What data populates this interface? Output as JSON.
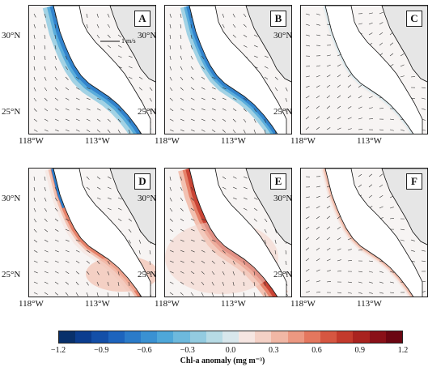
{
  "panels": [
    {
      "label": "A",
      "scale_label": "1 m/s",
      "pattern": "negative",
      "strength": 0.9
    },
    {
      "label": "B",
      "scale_label": "",
      "pattern": "negative",
      "strength": 0.75
    },
    {
      "label": "C",
      "scale_label": "",
      "pattern": "weak",
      "strength": 0.25
    },
    {
      "label": "D",
      "scale_label": "",
      "pattern": "mixed",
      "strength": 0.7
    },
    {
      "label": "E",
      "scale_label": "",
      "pattern": "positive",
      "strength": 0.95
    },
    {
      "label": "F",
      "scale_label": "",
      "pattern": "weakpos",
      "strength": 0.3
    }
  ],
  "lat_labels": [
    "30°N",
    "25°N"
  ],
  "lon_labels": [
    "118°W",
    "113°W"
  ],
  "colorbar": {
    "title": "Chl-a anomaly (mg m⁻³)",
    "ticks": [
      "−1.2",
      "−0.9",
      "−0.6",
      "−0.3",
      "0.0",
      "0.3",
      "0.6",
      "0.9",
      "1.2"
    ],
    "colors": [
      "#08306b",
      "#0b3d8f",
      "#134fa8",
      "#1d64bd",
      "#2b7bc9",
      "#3a91d2",
      "#4ea7d9",
      "#6db9dd",
      "#93cbe0",
      "#b7dbe5",
      "#d8e7ec",
      "#f6e6e2",
      "#f4d1c6",
      "#f1b7a5",
      "#ec9881",
      "#e4775e",
      "#d65641",
      "#c33a2c",
      "#a9231f",
      "#8a1018",
      "#6b0612"
    ]
  }
}
